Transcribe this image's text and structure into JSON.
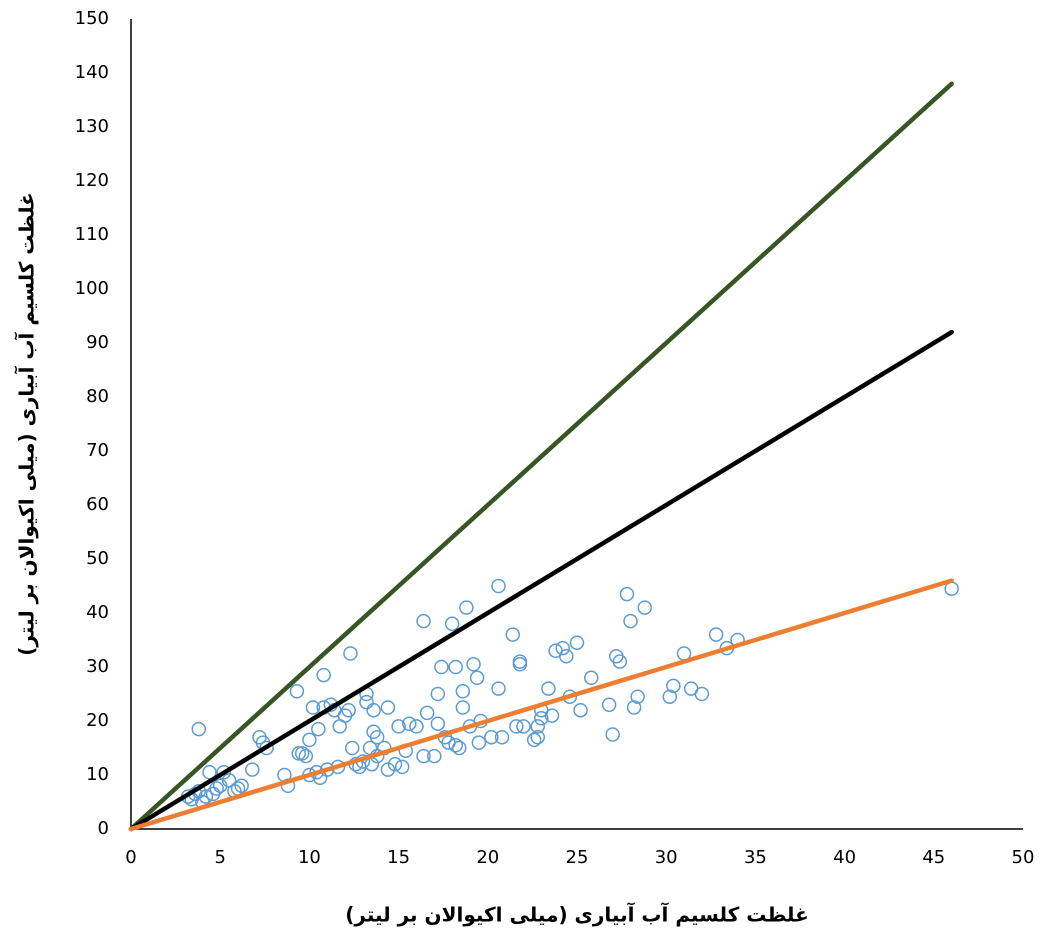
{
  "chart_data": {
    "type": "scatter",
    "x_label": "غلظت کلسیم آب آبیاری (میلی اکیوالان بر لیتر)",
    "y_label": "غلظت کلسیم آب آبیاری (میلی اکیوالان بر لیتر)",
    "xlim": [
      0,
      50
    ],
    "ylim": [
      0,
      150
    ],
    "xticks": [
      0,
      5,
      10,
      15,
      20,
      25,
      30,
      35,
      40,
      45,
      50
    ],
    "yticks": [
      0,
      10,
      20,
      30,
      40,
      50,
      60,
      70,
      80,
      90,
      100,
      110,
      120,
      130,
      140,
      150
    ],
    "grid": false,
    "series": [
      {
        "type": "scatter",
        "color": "#5b9bd5",
        "x": [
          3.2,
          3.4,
          3.6,
          3.8,
          4,
          4.2,
          4.4,
          4.6,
          4.8,
          5,
          5.2,
          5.5,
          5.8,
          6,
          6.2,
          3.8,
          6.8,
          7.2,
          7.4,
          7.6,
          8.6,
          8.8,
          9.3,
          9.4,
          9.6,
          9.8,
          10,
          10,
          10.2,
          10.4,
          10.5,
          10.6,
          10.8,
          10.8,
          11,
          11.2,
          11.4,
          11.6,
          11.7,
          12,
          12.2,
          12.3,
          12.4,
          12.6,
          12.8,
          13,
          13.2,
          13.2,
          13.4,
          13.5,
          13.6,
          13.6,
          13.8,
          13.8,
          14.2,
          14.4,
          14.4,
          14.8,
          15,
          15.2,
          15.4,
          15.6,
          16,
          16.4,
          16.4,
          16.6,
          17,
          17.2,
          17.2,
          17.4,
          17.6,
          17.8,
          18,
          18.2,
          18.2,
          18.4,
          18.6,
          18.6,
          18.8,
          19,
          19.2,
          19.4,
          19.5,
          19.6,
          20.2,
          20.6,
          20.6,
          20.8,
          21.4,
          21.6,
          21.8,
          21.8,
          22,
          22.6,
          22.8,
          22.8,
          23,
          23,
          23.4,
          23.6,
          23.8,
          24.2,
          24.4,
          24.6,
          25,
          25.2,
          25.8,
          26.8,
          27,
          27.2,
          27.4,
          27.8,
          28,
          28.2,
          28.4,
          28.8,
          30.2,
          30.4,
          31,
          31.4,
          32,
          32.8,
          33.4,
          34,
          46
        ],
        "values": [
          6,
          5.5,
          6.5,
          7,
          5,
          6,
          10.5,
          6.5,
          7.5,
          8,
          10.5,
          9,
          7,
          7.5,
          8,
          18.5,
          11,
          17,
          16,
          15,
          10,
          8,
          25.5,
          14,
          14,
          13.5,
          16.5,
          10,
          22.5,
          10.5,
          18.5,
          9.5,
          28.5,
          22.5,
          11,
          23,
          22,
          11.5,
          19,
          21,
          22,
          32.5,
          15,
          12,
          11.5,
          12.5,
          23.5,
          25,
          15,
          12,
          22,
          18,
          17,
          13.5,
          15,
          11,
          22.5,
          12,
          19,
          11.5,
          14.5,
          19.5,
          19,
          38.5,
          13.5,
          21.5,
          13.5,
          19.5,
          25,
          30,
          17,
          16,
          38,
          30,
          15.5,
          15,
          22.5,
          25.5,
          41,
          19,
          30.5,
          28,
          16,
          20,
          17,
          26,
          45,
          17,
          36,
          19,
          30.5,
          31,
          19,
          16.5,
          17,
          19,
          20.5,
          22,
          26,
          21,
          33,
          33.5,
          32,
          24.5,
          34.5,
          22,
          28,
          23,
          17.5,
          32,
          31,
          43.5,
          38.5,
          22.5,
          24.5,
          41,
          24.5,
          26.5,
          32.5,
          26,
          25,
          36,
          33.5,
          35,
          44.5
        ]
      },
      {
        "type": "line",
        "color": "#375623",
        "x": [
          0,
          46
        ],
        "values": [
          0,
          138
        ]
      },
      {
        "type": "line",
        "color": "#000000",
        "x": [
          0,
          46
        ],
        "values": [
          0,
          92
        ]
      },
      {
        "type": "line",
        "color": "#ed7d31",
        "x": [
          0,
          46
        ],
        "values": [
          0,
          46
        ]
      }
    ]
  }
}
